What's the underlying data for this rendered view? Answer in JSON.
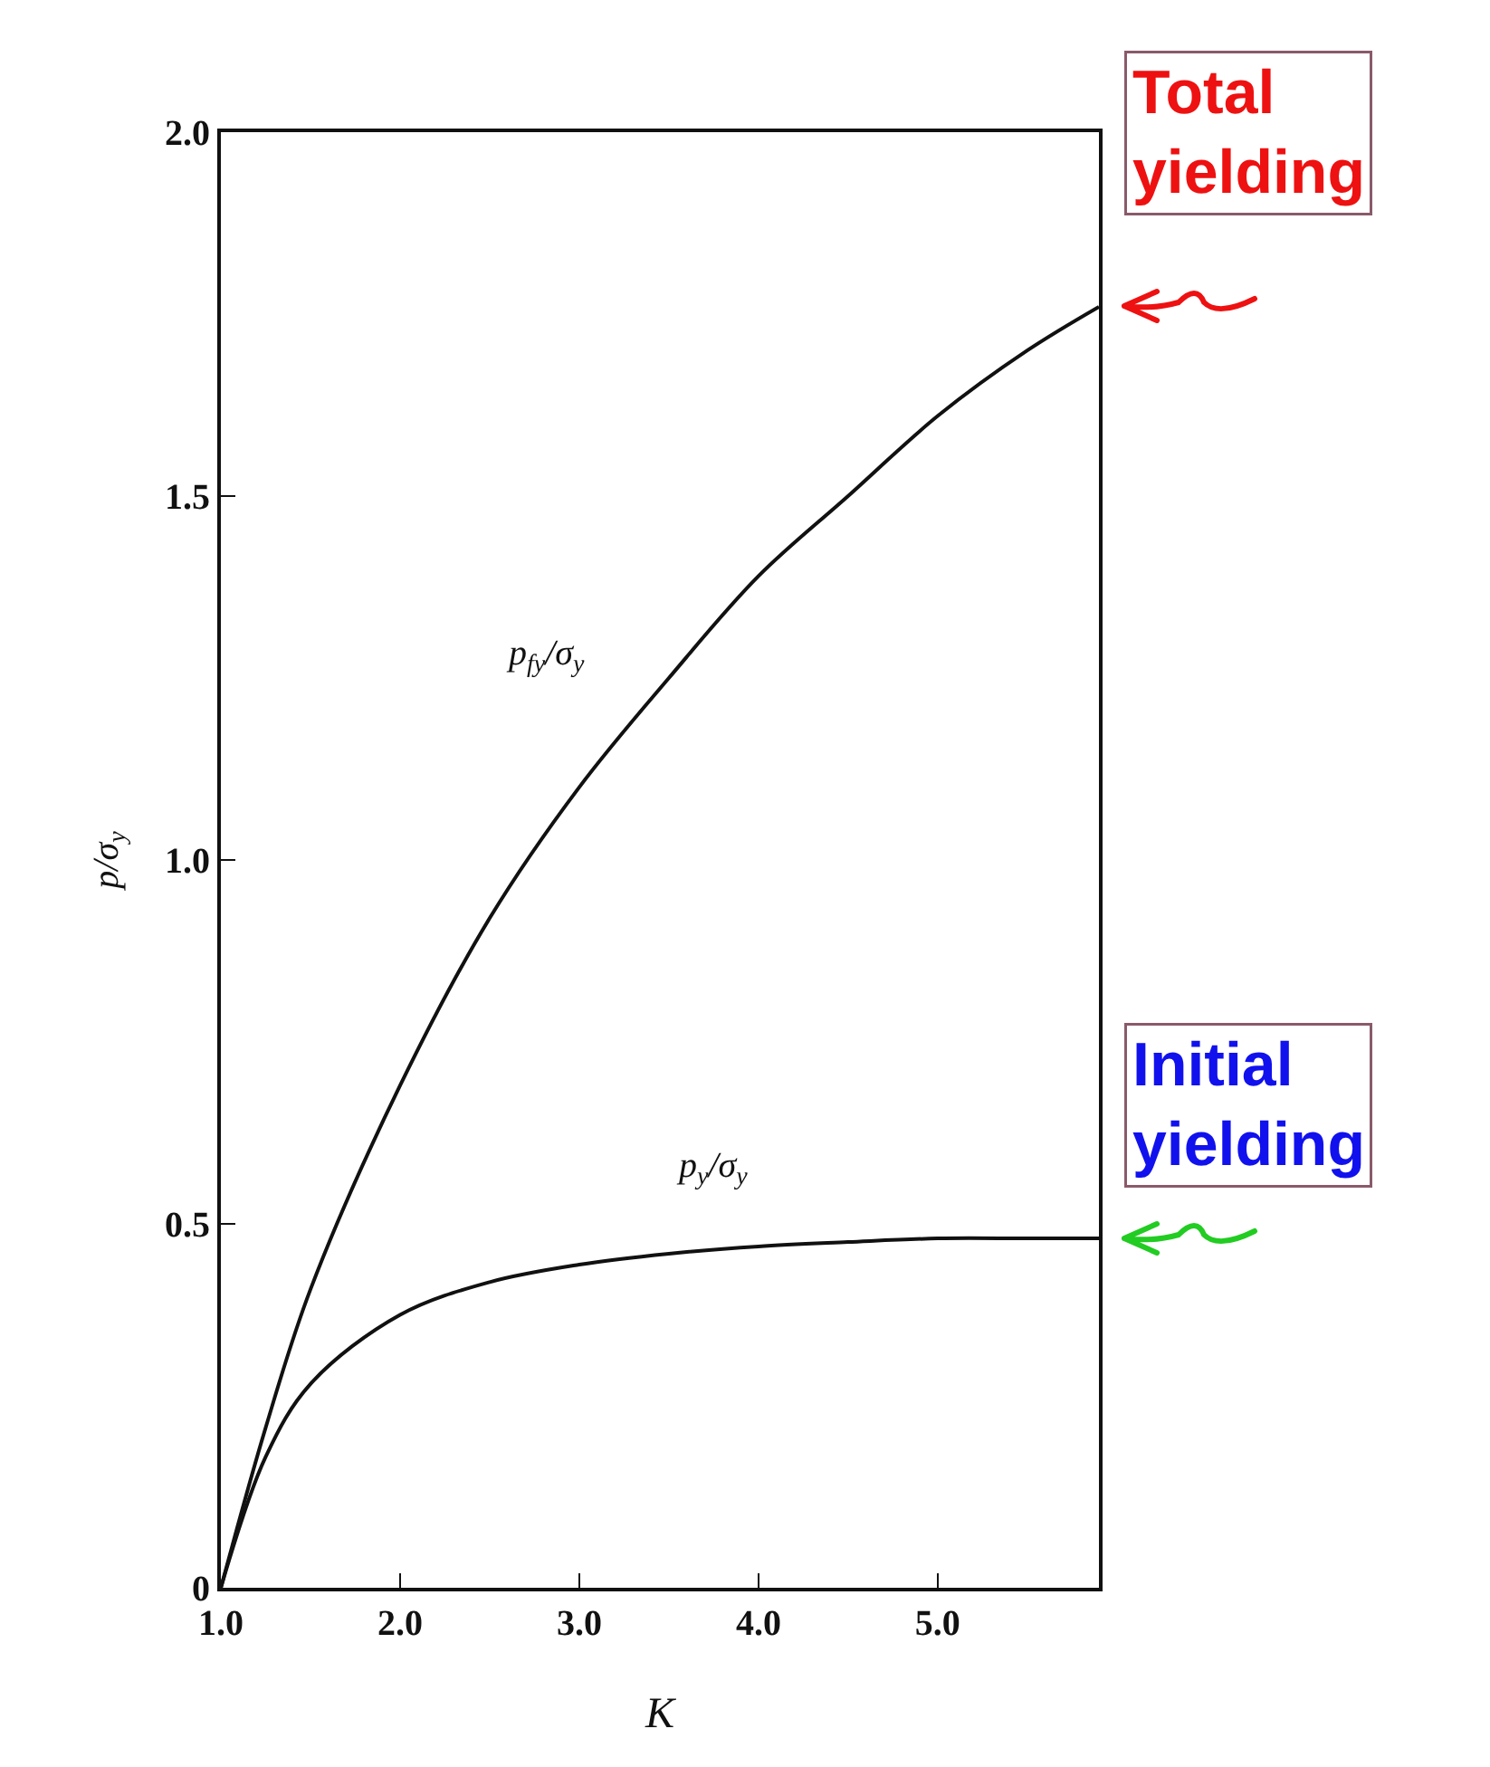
{
  "chart_data": {
    "type": "line",
    "xlabel": "K",
    "ylabel": "p/σ$_{y}$",
    "x": [
      1,
      1.25,
      1.5,
      2,
      2.5,
      3,
      3.5,
      4,
      4.5,
      5,
      5.5,
      5.9
    ],
    "series": [
      {
        "color": "#111111",
        "values": [
          0,
          0.22,
          0.41,
          0.69,
          0.92,
          1.1,
          1.25,
          1.39,
          1.5,
          1.61,
          1.7,
          1.76
        ]
      },
      {
        "color": "#111111",
        "values": [
          0,
          0.18,
          0.28,
          0.375,
          0.42,
          0.444,
          0.459,
          0.469,
          0.475,
          0.48,
          0.48,
          0.48
        ]
      }
    ],
    "xlim": [
      1,
      5.9
    ],
    "ylim": [
      0,
      2
    ],
    "xticks": [
      {
        "value": 1,
        "label": "1.0"
      },
      {
        "value": 2,
        "label": "2.0"
      },
      {
        "value": 3,
        "label": "3.0"
      },
      {
        "value": 4,
        "label": "4.0"
      },
      {
        "value": 5,
        "label": "5.0"
      }
    ],
    "yticks": [
      0,
      {
        "value": 0.5,
        "label": "0.5"
      },
      {
        "value": 1,
        "label": "1.0"
      },
      {
        "value": 1.5,
        "label": "1.5"
      },
      {
        "value": 2,
        "label": "2.0"
      }
    ],
    "marker": "none",
    "line_style": "solid",
    "annotations": [
      "p$_{fy}$/σ$_{y}$",
      "p$_{y}$/σ$_{y}$",
      {
        "text": "Total yielding",
        "x": 5.9,
        "y": 1.76
      },
      {
        "text": "Initial yielding",
        "x": 5.9,
        "y": 0.48
      }
    ]
  }
}
